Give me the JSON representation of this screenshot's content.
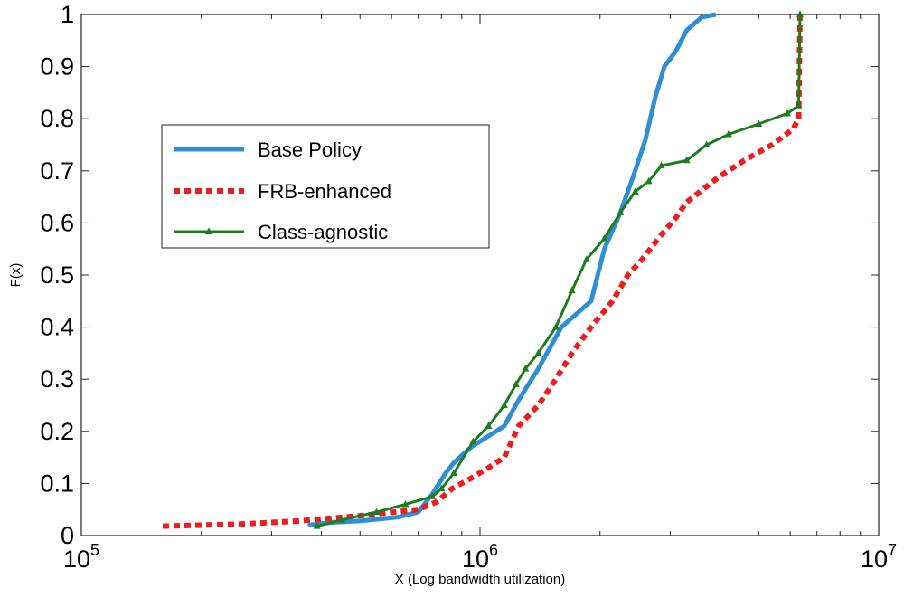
{
  "chart_data": {
    "type": "line",
    "title": "",
    "xlabel": "X (Log bandwidth utilization)",
    "ylabel": "F(x)",
    "xscale": "log",
    "xlim": [
      100000,
      10000000
    ],
    "ylim": [
      0,
      1
    ],
    "xticks": [
      {
        "value": 100000,
        "base": "10",
        "exp": "5"
      },
      {
        "value": 1000000,
        "base": "10",
        "exp": "6"
      },
      {
        "value": 10000000,
        "base": "10",
        "exp": "7"
      }
    ],
    "yticks": [
      {
        "value": 0,
        "label": "0"
      },
      {
        "value": 0.1,
        "label": "0.1"
      },
      {
        "value": 0.2,
        "label": "0.2"
      },
      {
        "value": 0.3,
        "label": "0.3"
      },
      {
        "value": 0.4,
        "label": "0.4"
      },
      {
        "value": 0.5,
        "label": "0.5"
      },
      {
        "value": 0.6,
        "label": "0.6"
      },
      {
        "value": 0.7,
        "label": "0.7"
      },
      {
        "value": 0.8,
        "label": "0.8"
      },
      {
        "value": 0.9,
        "label": "0.9"
      },
      {
        "value": 1,
        "label": "1"
      }
    ],
    "grid": false,
    "legend_position": "upper-left",
    "series": [
      {
        "name": "Base Policy",
        "color": "#2f8fd6",
        "style": "solid",
        "marker": "none",
        "points": [
          [
            370000,
            0.02
          ],
          [
            420000,
            0.025
          ],
          [
            500000,
            0.028
          ],
          [
            620000,
            0.035
          ],
          [
            700000,
            0.045
          ],
          [
            760000,
            0.08
          ],
          [
            820000,
            0.12
          ],
          [
            860000,
            0.14
          ],
          [
            950000,
            0.17
          ],
          [
            1150000,
            0.21
          ],
          [
            1250000,
            0.26
          ],
          [
            1400000,
            0.32
          ],
          [
            1600000,
            0.4
          ],
          [
            1900000,
            0.45
          ],
          [
            2050000,
            0.55
          ],
          [
            2250000,
            0.62
          ],
          [
            2450000,
            0.7
          ],
          [
            2600000,
            0.76
          ],
          [
            2750000,
            0.84
          ],
          [
            2900000,
            0.9
          ],
          [
            3100000,
            0.93
          ],
          [
            3300000,
            0.97
          ],
          [
            3600000,
            0.995
          ],
          [
            3900000,
            1.0
          ]
        ]
      },
      {
        "name": "FRB-enhanced",
        "color": "#ee1c1c",
        "style": "dotted",
        "marker": "none",
        "points": [
          [
            160000,
            0.018
          ],
          [
            250000,
            0.022
          ],
          [
            350000,
            0.028
          ],
          [
            500000,
            0.038
          ],
          [
            700000,
            0.05
          ],
          [
            780000,
            0.065
          ],
          [
            850000,
            0.09
          ],
          [
            950000,
            0.11
          ],
          [
            1050000,
            0.13
          ],
          [
            1150000,
            0.15
          ],
          [
            1250000,
            0.21
          ],
          [
            1400000,
            0.25
          ],
          [
            1550000,
            0.3
          ],
          [
            1700000,
            0.35
          ],
          [
            1900000,
            0.4
          ],
          [
            2150000,
            0.45
          ],
          [
            2350000,
            0.5
          ],
          [
            2550000,
            0.53
          ],
          [
            2800000,
            0.57
          ],
          [
            3100000,
            0.61
          ],
          [
            3300000,
            0.64
          ],
          [
            3700000,
            0.67
          ],
          [
            4000000,
            0.69
          ],
          [
            4600000,
            0.72
          ],
          [
            5400000,
            0.75
          ],
          [
            6100000,
            0.78
          ],
          [
            6300000,
            0.8
          ],
          [
            6350000,
            1.0
          ]
        ]
      },
      {
        "name": "Class-agnostic",
        "color": "#1b7d1b",
        "style": "solid",
        "marker": "triangle",
        "points": [
          [
            390000,
            0.018
          ],
          [
            450000,
            0.03
          ],
          [
            550000,
            0.045
          ],
          [
            650000,
            0.06
          ],
          [
            760000,
            0.075
          ],
          [
            800000,
            0.09
          ],
          [
            860000,
            0.12
          ],
          [
            960000,
            0.18
          ],
          [
            1050000,
            0.21
          ],
          [
            1150000,
            0.25
          ],
          [
            1230000,
            0.29
          ],
          [
            1300000,
            0.32
          ],
          [
            1400000,
            0.35
          ],
          [
            1550000,
            0.4
          ],
          [
            1700000,
            0.47
          ],
          [
            1850000,
            0.53
          ],
          [
            2050000,
            0.57
          ],
          [
            2250000,
            0.62
          ],
          [
            2450000,
            0.66
          ],
          [
            2650000,
            0.68
          ],
          [
            2850000,
            0.71
          ],
          [
            3300000,
            0.72
          ],
          [
            3700000,
            0.75
          ],
          [
            4200000,
            0.77
          ],
          [
            5000000,
            0.79
          ],
          [
            5900000,
            0.81
          ],
          [
            6300000,
            0.825
          ],
          [
            6350000,
            1.0
          ]
        ]
      }
    ]
  }
}
